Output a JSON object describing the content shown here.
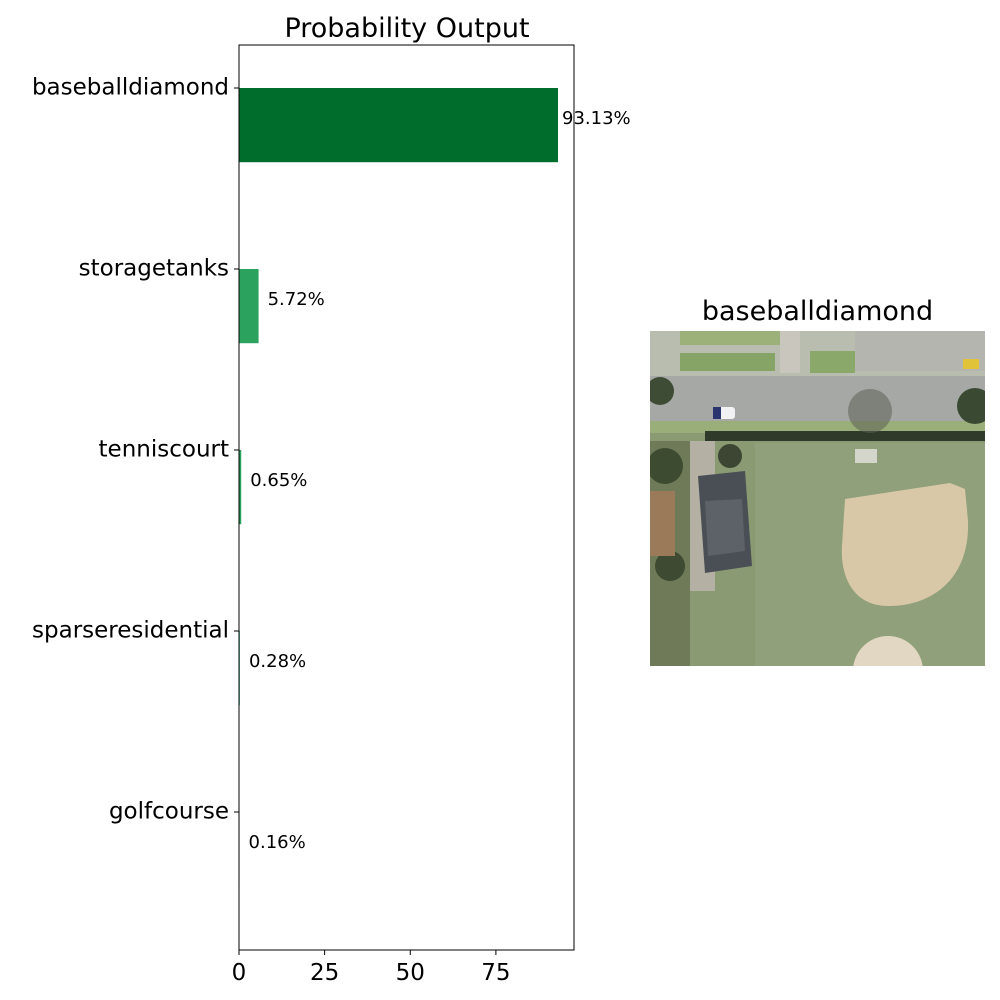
{
  "chart_data": {
    "type": "bar",
    "orientation": "horizontal",
    "title": "Probability Output",
    "categories": [
      "baseballdiamond",
      "storagetanks",
      "tenniscourt",
      "sparseresidential",
      "golfcourse"
    ],
    "values": [
      93.13,
      5.72,
      0.65,
      0.28,
      0.16
    ],
    "data_labels": [
      "93.13%",
      "5.72%",
      "0.65%",
      "0.28%",
      "0.16%"
    ],
    "bar_colors": [
      "#006d2c",
      "#2ca25f",
      "#2ca25f",
      "#66c2a4",
      "#99d8c9"
    ],
    "xlim": [
      0,
      97.8
    ],
    "xticks": [
      0,
      25,
      50,
      75
    ],
    "xlabel": "",
    "ylabel": "",
    "grid": false
  },
  "image_panel": {
    "title": "baseballdiamond"
  }
}
